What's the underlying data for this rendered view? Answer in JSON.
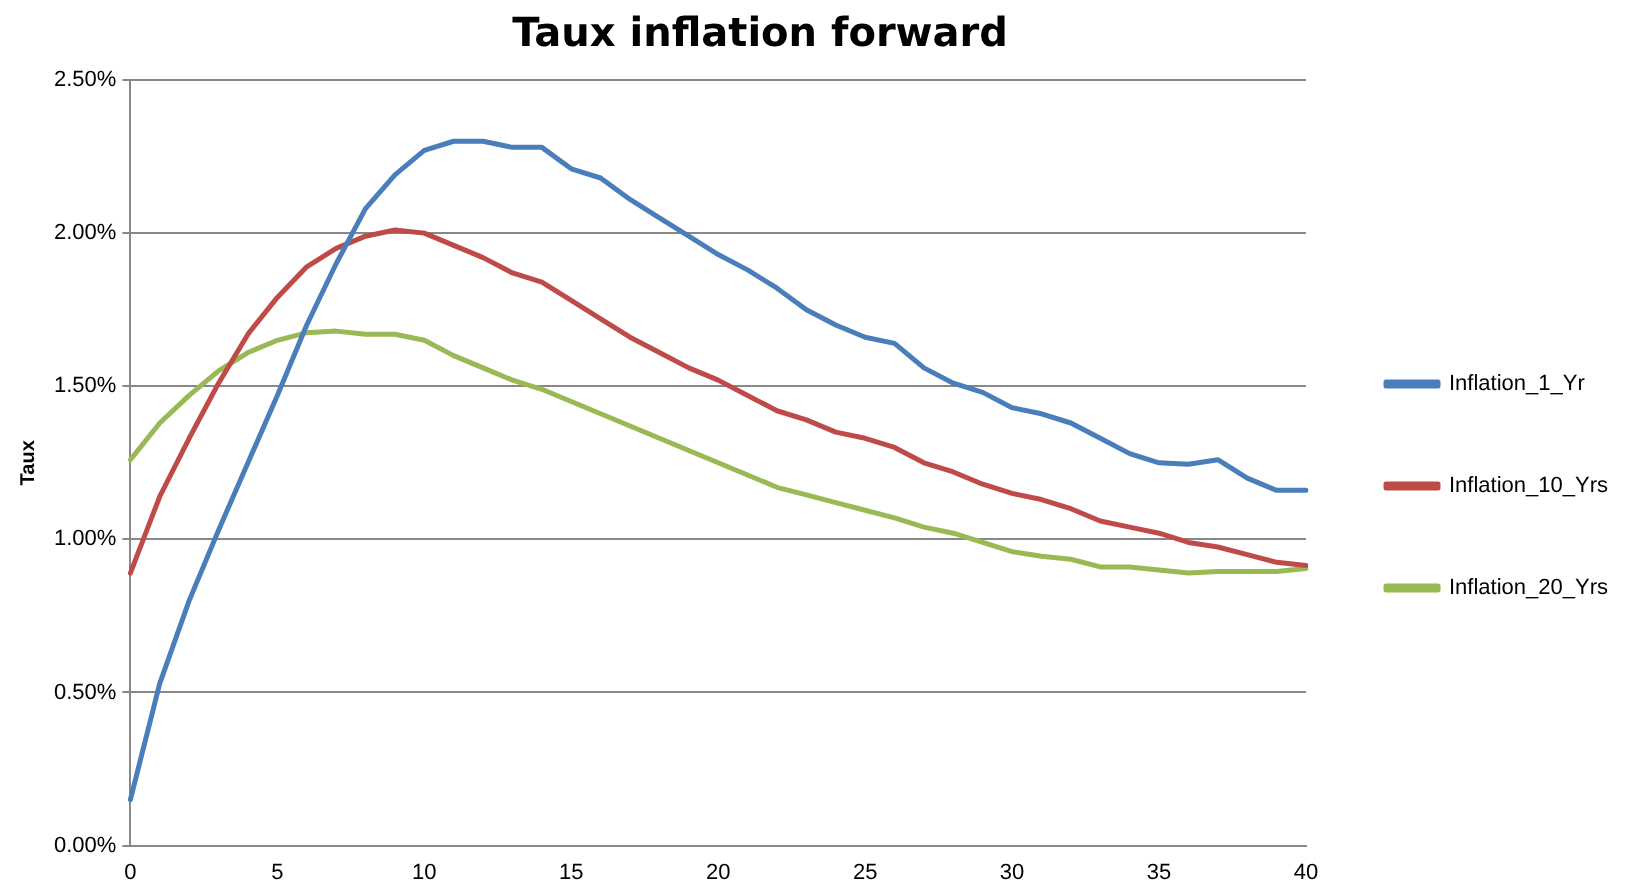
{
  "chart_data": {
    "type": "line",
    "title": "Taux inflation forward",
    "ylabel": "Taux",
    "categories": [
      "0",
      null,
      null,
      null,
      null,
      "5",
      null,
      null,
      null,
      null,
      "10",
      null,
      null,
      null,
      null,
      "15",
      null,
      null,
      null,
      null,
      "20",
      null,
      null,
      null,
      null,
      "25",
      null,
      null,
      null,
      null,
      "30",
      null,
      null,
      null,
      null,
      "35",
      null,
      null,
      null,
      null,
      "40"
    ],
    "series": [
      {
        "name": "Inflation_1_Yr",
        "color": "#4a7ebb",
        "values": [
          0.15,
          0.53,
          0.8,
          1.03,
          1.25,
          1.47,
          1.7,
          1.9,
          2.08,
          2.19,
          2.27,
          2.3,
          2.3,
          2.28,
          2.28,
          2.21,
          2.18,
          2.11,
          2.05,
          1.99,
          1.93,
          1.88,
          1.82,
          1.75,
          1.7,
          1.66,
          1.64,
          1.56,
          1.51,
          1.48,
          1.43,
          1.41,
          1.38,
          1.33,
          1.28,
          1.25,
          1.245,
          1.26,
          1.2,
          1.16,
          1.16
        ]
      },
      {
        "name": "Inflation_10_Yrs",
        "color": "#be4b48",
        "values": [
          0.89,
          1.14,
          1.33,
          1.51,
          1.67,
          1.79,
          1.89,
          1.95,
          1.99,
          2.01,
          2.0,
          1.96,
          1.92,
          1.87,
          1.84,
          1.78,
          1.72,
          1.66,
          1.61,
          1.56,
          1.52,
          1.47,
          1.42,
          1.39,
          1.35,
          1.33,
          1.3,
          1.25,
          1.22,
          1.18,
          1.15,
          1.13,
          1.1,
          1.06,
          1.04,
          1.02,
          0.99,
          0.975,
          0.95,
          0.925,
          0.915
        ]
      },
      {
        "name": "Inflation_20_Yrs",
        "color": "#98b954",
        "values": [
          1.26,
          1.38,
          1.47,
          1.55,
          1.61,
          1.65,
          1.675,
          1.68,
          1.67,
          1.67,
          1.65,
          1.6,
          1.56,
          1.52,
          1.49,
          1.45,
          1.41,
          1.37,
          1.33,
          1.29,
          1.25,
          1.21,
          1.17,
          1.145,
          1.12,
          1.095,
          1.07,
          1.04,
          1.02,
          0.99,
          0.96,
          0.945,
          0.935,
          0.91,
          0.91,
          0.9,
          0.89,
          0.895,
          0.895,
          0.895,
          0.905
        ]
      }
    ],
    "ylim": [
      0,
      2.5
    ],
    "yticks": [
      {
        "value": 0,
        "label": "0.00%"
      },
      {
        "value": 0.5,
        "label": "0.50%"
      },
      {
        "value": 1,
        "label": "1.00%"
      },
      {
        "value": 1.5,
        "label": "1.50%"
      },
      {
        "value": 2,
        "label": "2.00%"
      },
      {
        "value": 2.5,
        "label": "2.50%"
      }
    ],
    "grid": "y",
    "legend": "right",
    "marker": "none",
    "line_style": "solid"
  }
}
